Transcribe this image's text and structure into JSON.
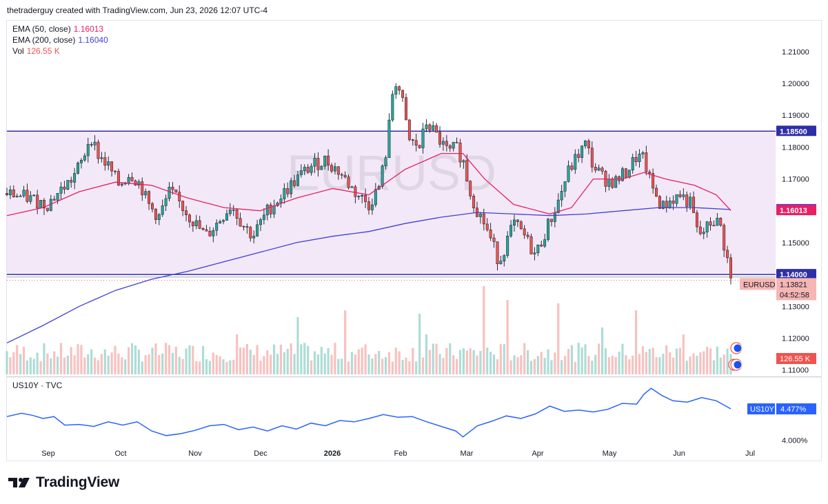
{
  "header": {
    "attribution": "thetraderguy created with TradingView.com, Jun 23, 2026 12:07 UTC-4"
  },
  "legend": {
    "ema50_label": "EMA (50, close)",
    "ema50_value": "1.16013",
    "ema200_label": "EMA (200, close)",
    "ema200_value": "1.16040",
    "vol_label": "Vol",
    "vol_value": "126.55 K"
  },
  "watermark": "EURUSD",
  "lower_pane": {
    "label": "US10Y · TVC"
  },
  "footer": {
    "brand": "TradingView"
  },
  "colors": {
    "up": "#26a69a",
    "down": "#ef5350",
    "ema50": "#e91e63",
    "ema200": "#3f3fd8",
    "range_fill": "#f3e8f7",
    "range_line": "#2e2ea8",
    "us10y": "#2962ff"
  },
  "chart_data": [
    {
      "type": "candlestick",
      "symbol": "EURUSD",
      "x_axis_labels": [
        "Sep",
        "Oct",
        "Nov",
        "Dec",
        "2026",
        "Feb",
        "Mar",
        "Apr",
        "May",
        "Jun",
        "Jul"
      ],
      "y_ticks": [
        "1.21000",
        "1.20000",
        "1.19000",
        "1.18000",
        "1.17000",
        "1.15000",
        "1.13000",
        "1.12000",
        "1.11000"
      ],
      "ylim": [
        1.1082,
        1.2197
      ],
      "horizontal_levels": [
        1.185,
        1.14
      ],
      "range_box": {
        "top": 1.185,
        "bottom": 1.14
      },
      "last_price": "1.13821",
      "countdown": "04:52:58",
      "price_labels": [
        {
          "text": "1.18500",
          "value": 1.185,
          "color": "#2e2ea8"
        },
        {
          "text": "1.16040",
          "value": 1.1604,
          "color": "#3f3fd8"
        },
        {
          "text": "1.16013",
          "value": 1.16013,
          "color": "#e91e63"
        },
        {
          "text": "1.14000",
          "value": 1.14,
          "color": "#2e2ea8"
        }
      ],
      "close_path": [
        [
          0,
          1.1655
        ],
        [
          0.03,
          1.164
        ],
        [
          0.055,
          1.162
        ],
        [
          0.07,
          1.1655
        ],
        [
          0.09,
          1.17
        ],
        [
          0.105,
          1.176
        ],
        [
          0.115,
          1.184
        ],
        [
          0.125,
          1.178
        ],
        [
          0.14,
          1.174
        ],
        [
          0.155,
          1.168
        ],
        [
          0.17,
          1.172
        ],
        [
          0.185,
          1.168
        ],
        [
          0.195,
          1.162
        ],
        [
          0.21,
          1.158
        ],
        [
          0.225,
          1.166
        ],
        [
          0.24,
          1.162
        ],
        [
          0.26,
          1.156
        ],
        [
          0.275,
          1.152
        ],
        [
          0.29,
          1.156
        ],
        [
          0.31,
          1.162
        ],
        [
          0.325,
          1.156
        ],
        [
          0.34,
          1.152
        ],
        [
          0.36,
          1.16
        ],
        [
          0.38,
          1.165
        ],
        [
          0.4,
          1.17
        ],
        [
          0.42,
          1.174
        ],
        [
          0.44,
          1.176
        ],
        [
          0.46,
          1.172
        ],
        [
          0.48,
          1.166
        ],
        [
          0.5,
          1.162
        ],
        [
          0.515,
          1.168
        ],
        [
          0.525,
          1.18
        ],
        [
          0.535,
          1.202
        ],
        [
          0.545,
          1.196
        ],
        [
          0.555,
          1.182
        ],
        [
          0.57,
          1.18
        ],
        [
          0.58,
          1.188
        ],
        [
          0.595,
          1.183
        ],
        [
          0.61,
          1.178
        ],
        [
          0.62,
          1.18
        ],
        [
          0.63,
          1.176
        ],
        [
          0.64,
          1.166
        ],
        [
          0.65,
          1.16
        ],
        [
          0.66,
          1.156
        ],
        [
          0.67,
          1.15
        ],
        [
          0.68,
          1.144
        ],
        [
          0.69,
          1.15
        ],
        [
          0.7,
          1.156
        ],
        [
          0.715,
          1.152
        ],
        [
          0.73,
          1.146
        ],
        [
          0.745,
          1.154
        ],
        [
          0.76,
          1.162
        ],
        [
          0.775,
          1.172
        ],
        [
          0.79,
          1.178
        ],
        [
          0.8,
          1.181
        ],
        [
          0.81,
          1.174
        ],
        [
          0.825,
          1.17
        ],
        [
          0.84,
          1.169
        ],
        [
          0.855,
          1.172
        ],
        [
          0.87,
          1.177
        ],
        [
          0.88,
          1.176
        ],
        [
          0.89,
          1.168
        ],
        [
          0.905,
          1.161
        ],
        [
          0.915,
          1.163
        ],
        [
          0.93,
          1.165
        ],
        [
          0.945,
          1.162
        ],
        [
          0.955,
          1.152
        ],
        [
          0.965,
          1.154
        ],
        [
          0.975,
          1.157
        ],
        [
          0.985,
          1.156
        ],
        [
          0.99,
          1.15
        ],
        [
          0.995,
          1.145
        ],
        [
          1.0,
          1.1382
        ]
      ],
      "ema50_path": [
        [
          0,
          1.1585
        ],
        [
          0.05,
          1.161
        ],
        [
          0.1,
          1.166
        ],
        [
          0.15,
          1.169
        ],
        [
          0.2,
          1.168
        ],
        [
          0.25,
          1.164
        ],
        [
          0.3,
          1.161
        ],
        [
          0.35,
          1.16
        ],
        [
          0.4,
          1.164
        ],
        [
          0.45,
          1.167
        ],
        [
          0.5,
          1.165
        ],
        [
          0.55,
          1.173
        ],
        [
          0.6,
          1.178
        ],
        [
          0.63,
          1.178
        ],
        [
          0.66,
          1.17
        ],
        [
          0.7,
          1.162
        ],
        [
          0.75,
          1.159
        ],
        [
          0.78,
          1.161
        ],
        [
          0.81,
          1.17
        ],
        [
          0.85,
          1.17
        ],
        [
          0.88,
          1.172
        ],
        [
          0.91,
          1.17
        ],
        [
          0.95,
          1.168
        ],
        [
          0.98,
          1.165
        ],
        [
          1.0,
          1.1601
        ]
      ],
      "ema200_path": [
        [
          0,
          1.1185
        ],
        [
          0.05,
          1.124
        ],
        [
          0.1,
          1.13
        ],
        [
          0.15,
          1.135
        ],
        [
          0.2,
          1.1385
        ],
        [
          0.25,
          1.141
        ],
        [
          0.3,
          1.144
        ],
        [
          0.35,
          1.147
        ],
        [
          0.4,
          1.15
        ],
        [
          0.45,
          1.152
        ],
        [
          0.5,
          1.1535
        ],
        [
          0.55,
          1.156
        ],
        [
          0.6,
          1.158
        ],
        [
          0.65,
          1.1595
        ],
        [
          0.7,
          1.159
        ],
        [
          0.75,
          1.1585
        ],
        [
          0.8,
          1.159
        ],
        [
          0.85,
          1.16
        ],
        [
          0.9,
          1.161
        ],
        [
          0.95,
          1.161
        ],
        [
          1.0,
          1.1604
        ]
      ]
    },
    {
      "type": "line",
      "symbol": "US10Y",
      "series": [
        {
          "name": "US10Y",
          "last_value": "4.477%"
        }
      ],
      "y_ticks": [
        "4.000%"
      ],
      "ylim": [
        3.9,
        4.95
      ],
      "path": [
        [
          0,
          4.36
        ],
        [
          0.02,
          4.41
        ],
        [
          0.035,
          4.38
        ],
        [
          0.05,
          4.33
        ],
        [
          0.065,
          4.36
        ],
        [
          0.08,
          4.23
        ],
        [
          0.1,
          4.24
        ],
        [
          0.12,
          4.21
        ],
        [
          0.14,
          4.28
        ],
        [
          0.16,
          4.23
        ],
        [
          0.18,
          4.28
        ],
        [
          0.2,
          4.14
        ],
        [
          0.22,
          4.07
        ],
        [
          0.24,
          4.1
        ],
        [
          0.26,
          4.15
        ],
        [
          0.28,
          4.22
        ],
        [
          0.3,
          4.24
        ],
        [
          0.32,
          4.16
        ],
        [
          0.34,
          4.2
        ],
        [
          0.36,
          4.14
        ],
        [
          0.38,
          4.22
        ],
        [
          0.4,
          4.17
        ],
        [
          0.42,
          4.26
        ],
        [
          0.44,
          4.22
        ],
        [
          0.46,
          4.3
        ],
        [
          0.48,
          4.28
        ],
        [
          0.5,
          4.33
        ],
        [
          0.52,
          4.39
        ],
        [
          0.54,
          4.35
        ],
        [
          0.56,
          4.36
        ],
        [
          0.58,
          4.28
        ],
        [
          0.6,
          4.21
        ],
        [
          0.62,
          4.14
        ],
        [
          0.63,
          4.05
        ],
        [
          0.65,
          4.22
        ],
        [
          0.67,
          4.29
        ],
        [
          0.69,
          4.37
        ],
        [
          0.71,
          4.33
        ],
        [
          0.73,
          4.4
        ],
        [
          0.75,
          4.52
        ],
        [
          0.77,
          4.44
        ],
        [
          0.79,
          4.46
        ],
        [
          0.81,
          4.43
        ],
        [
          0.83,
          4.47
        ],
        [
          0.85,
          4.56
        ],
        [
          0.87,
          4.55
        ],
        [
          0.88,
          4.7
        ],
        [
          0.89,
          4.79
        ],
        [
          0.905,
          4.68
        ],
        [
          0.92,
          4.6
        ],
        [
          0.94,
          4.58
        ],
        [
          0.96,
          4.65
        ],
        [
          0.98,
          4.6
        ],
        [
          1.0,
          4.477
        ]
      ]
    }
  ]
}
